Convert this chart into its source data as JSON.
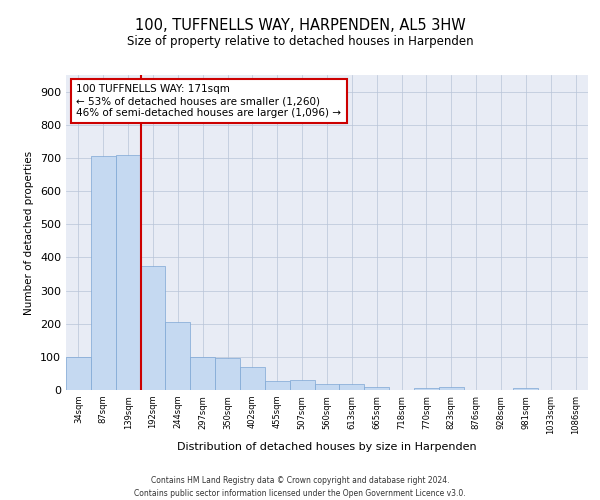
{
  "title": "100, TUFFNELLS WAY, HARPENDEN, AL5 3HW",
  "subtitle": "Size of property relative to detached houses in Harpenden",
  "xlabel": "Distribution of detached houses by size in Harpenden",
  "ylabel": "Number of detached properties",
  "categories": [
    "34sqm",
    "87sqm",
    "139sqm",
    "192sqm",
    "244sqm",
    "297sqm",
    "350sqm",
    "402sqm",
    "455sqm",
    "507sqm",
    "560sqm",
    "613sqm",
    "665sqm",
    "718sqm",
    "770sqm",
    "823sqm",
    "876sqm",
    "928sqm",
    "981sqm",
    "1033sqm",
    "1086sqm"
  ],
  "bar_heights": [
    100,
    707,
    710,
    375,
    205,
    100,
    97,
    70,
    28,
    30,
    18,
    18,
    9,
    0,
    5,
    8,
    0,
    0,
    5,
    0,
    0
  ],
  "bar_color": "#c5d9f1",
  "bar_edge_color": "#7da6d4",
  "property_line_x": 2.5,
  "property_line_color": "#cc0000",
  "annotation_text": "100 TUFFNELLS WAY: 171sqm\n← 53% of detached houses are smaller (1,260)\n46% of semi-detached houses are larger (1,096) →",
  "annotation_box_color": "#ffffff",
  "annotation_box_edge": "#cc0000",
  "ylim": [
    0,
    950
  ],
  "yticks": [
    0,
    100,
    200,
    300,
    400,
    500,
    600,
    700,
    800,
    900
  ],
  "grid_color": "#b8c4d8",
  "background_color": "#e8ecf5",
  "footer_line1": "Contains HM Land Registry data © Crown copyright and database right 2024.",
  "footer_line2": "Contains public sector information licensed under the Open Government Licence v3.0."
}
